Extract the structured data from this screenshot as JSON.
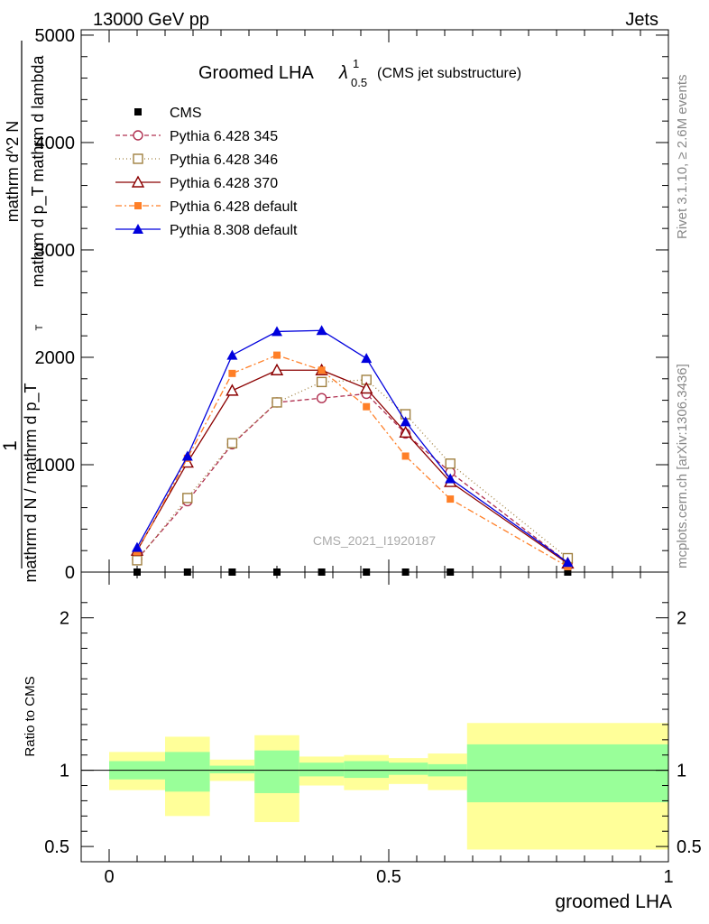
{
  "header": {
    "energy_label": "13000 GeV pp",
    "process_label": "Jets"
  },
  "side_labels": {
    "rivet": "Rivet 3.1.10, ≥ 2.6M events",
    "mcplots": "mcplots.cern.ch [arXiv:1306.3436]"
  },
  "watermark": "CMS_2021_I1920187",
  "colors": {
    "cms": "#000000",
    "p345": "#b03050",
    "p346": "#a08040",
    "p370": "#8b0000",
    "p6def": "#ff7f27",
    "p8def": "#0000dd",
    "band_inner": "#99ff99",
    "band_outer": "#ffff99"
  },
  "chart_data": [
    {
      "type": "line",
      "title": "Groomed LHA",
      "title_symbol": "λ",
      "title_superscript": "1",
      "title_subscript": "0.5",
      "title_note": "(CMS jet substructure)",
      "ylabel_numerator": "1",
      "ylabel_denominator": "mathrm d N / mathrm d p_T",
      "ylabel_fraction_line": "mathrm d^2 N",
      "ylabel_extra": "mathrm d p_T mathrm d lambda",
      "ylabel_sub": "T",
      "xlim": [
        -0.05,
        1.0
      ],
      "ylim": [
        0,
        5050
      ],
      "yticks": [
        0,
        1000,
        2000,
        3000,
        4000,
        5000
      ],
      "ytick_labels": [
        "0",
        "1000",
        "2000",
        "3000",
        "4000",
        "5000"
      ],
      "legend_position": "top-left",
      "series": [
        {
          "name": "CMS",
          "color_key": "cms",
          "marker": "square-filled",
          "dash": "",
          "x": [
            0.05,
            0.14,
            0.22,
            0.3,
            0.38,
            0.46,
            0.53,
            0.61,
            0.82
          ],
          "y": [
            0,
            0,
            0,
            0,
            0,
            0,
            0,
            0,
            0
          ]
        },
        {
          "name": "Pythia 6.428 345",
          "color_key": "p345",
          "marker": "circle-open",
          "dash": "5,3",
          "x": [
            0.05,
            0.14,
            0.22,
            0.3,
            0.38,
            0.46,
            0.53,
            0.61,
            0.82
          ],
          "y": [
            120,
            660,
            1190,
            1580,
            1620,
            1660,
            1290,
            930,
            90
          ]
        },
        {
          "name": "Pythia 6.428 346",
          "color_key": "p346",
          "marker": "square-open",
          "dash": "1,3",
          "x": [
            0.05,
            0.14,
            0.22,
            0.3,
            0.38,
            0.46,
            0.53,
            0.61,
            0.82
          ],
          "y": [
            110,
            690,
            1200,
            1580,
            1770,
            1790,
            1470,
            1010,
            130
          ]
        },
        {
          "name": "Pythia 6.428 370",
          "color_key": "p370",
          "marker": "triangle-open",
          "dash": "",
          "x": [
            0.05,
            0.14,
            0.22,
            0.3,
            0.38,
            0.46,
            0.53,
            0.61,
            0.82
          ],
          "y": [
            200,
            1020,
            1690,
            1880,
            1880,
            1710,
            1300,
            840,
            80
          ]
        },
        {
          "name": "Pythia 6.428 default",
          "color_key": "p6def",
          "marker": "square-filled",
          "dash": "7,3,2,3",
          "x": [
            0.05,
            0.14,
            0.22,
            0.3,
            0.38,
            0.46,
            0.53,
            0.61,
            0.82
          ],
          "y": [
            190,
            1060,
            1850,
            2020,
            1880,
            1540,
            1080,
            680,
            50
          ]
        },
        {
          "name": "Pythia 8.308 default",
          "color_key": "p8def",
          "marker": "triangle-filled",
          "dash": "",
          "x": [
            0.05,
            0.14,
            0.22,
            0.3,
            0.38,
            0.46,
            0.53,
            0.61,
            0.82
          ],
          "y": [
            230,
            1080,
            2020,
            2240,
            2250,
            1990,
            1400,
            870,
            90
          ]
        }
      ]
    },
    {
      "type": "area",
      "ylabel": "Ratio to CMS",
      "xlabel": "groomed LHA",
      "xlim": [
        -0.05,
        1.0
      ],
      "ylim": [
        0.4,
        2.3
      ],
      "yticks": [
        0.5,
        1,
        2
      ],
      "ytick_labels": [
        "0.5",
        "1",
        "2"
      ],
      "xticks": [
        0,
        0.5,
        1
      ],
      "xtick_labels": [
        "0",
        "0.5",
        "1"
      ],
      "reference_line": 1,
      "bins": [
        {
          "x0": 0.0,
          "x1": 0.1,
          "inner": [
            0.94,
            1.06
          ],
          "outer": [
            0.87,
            1.12
          ]
        },
        {
          "x0": 0.1,
          "x1": 0.18,
          "inner": [
            0.86,
            1.12
          ],
          "outer": [
            0.7,
            1.22
          ]
        },
        {
          "x0": 0.18,
          "x1": 0.26,
          "inner": [
            0.98,
            1.03
          ],
          "outer": [
            0.93,
            1.07
          ]
        },
        {
          "x0": 0.26,
          "x1": 0.34,
          "inner": [
            0.85,
            1.13
          ],
          "outer": [
            0.66,
            1.23
          ]
        },
        {
          "x0": 0.34,
          "x1": 0.42,
          "inner": [
            0.96,
            1.05
          ],
          "outer": [
            0.9,
            1.09
          ]
        },
        {
          "x0": 0.42,
          "x1": 0.5,
          "inner": [
            0.95,
            1.06
          ],
          "outer": [
            0.87,
            1.1
          ]
        },
        {
          "x0": 0.5,
          "x1": 0.57,
          "inner": [
            0.97,
            1.05
          ],
          "outer": [
            0.91,
            1.08
          ]
        },
        {
          "x0": 0.57,
          "x1": 0.64,
          "inner": [
            0.96,
            1.04
          ],
          "outer": [
            0.87,
            1.11
          ]
        },
        {
          "x0": 0.64,
          "x1": 1.0,
          "inner": [
            0.79,
            1.17
          ],
          "outer": [
            0.48,
            1.31
          ]
        }
      ]
    }
  ]
}
